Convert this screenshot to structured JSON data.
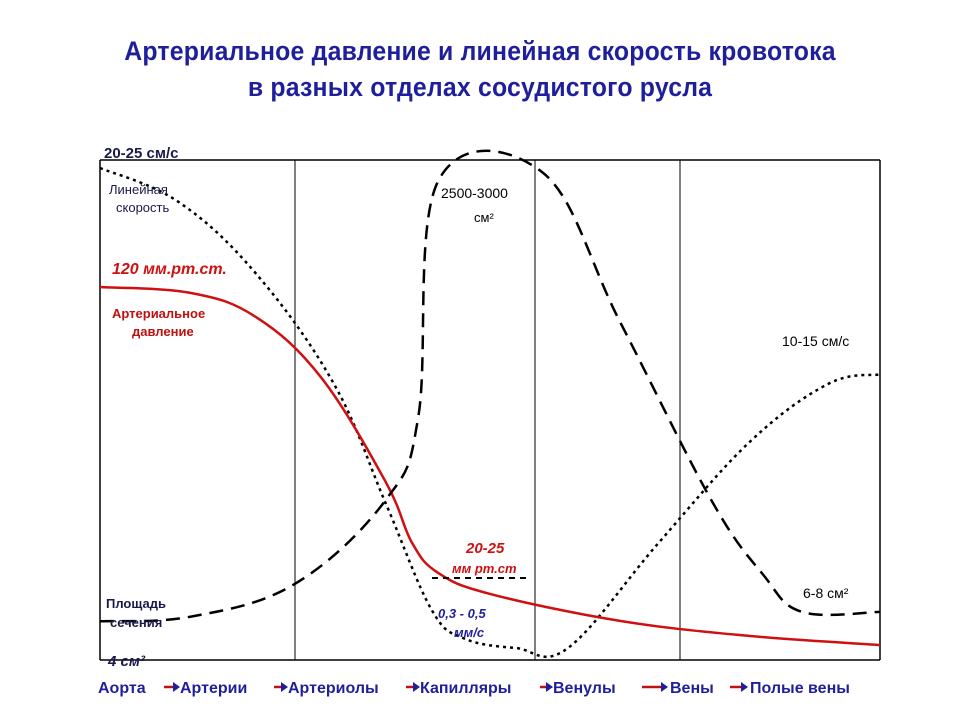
{
  "title_lines": [
    "Артериальное давление и линейная скорость кровотока",
    "в разных отделах сосудистого русла"
  ],
  "colors": {
    "title": "#1f1f9c",
    "pressure": "#d01010",
    "axis_text": "#1f1f9c",
    "curves": "#000000"
  },
  "chart_data": {
    "type": "line",
    "title": "Артериальное давление и линейная скорость кровотока в разных отделах сосудистого русла",
    "categories": [
      "Аорта",
      "Артерии",
      "Артериолы",
      "Капилляры",
      "Венулы",
      "Вены",
      "Полые вены"
    ],
    "grid": "vertical separators between vessel sections",
    "series": [
      {
        "name": "Линейная скорость",
        "style": "dotted",
        "color": "#000000",
        "start_label": "20-25 см/с",
        "end_label": "10-15 см/с",
        "points": [
          [
            0.0,
            1.0
          ],
          [
            0.6,
            0.93
          ],
          [
            1.2,
            0.78
          ],
          [
            1.8,
            0.55
          ],
          [
            2.2,
            0.3
          ],
          [
            2.55,
            0.08
          ],
          [
            2.8,
            0.02
          ],
          [
            3.2,
            0.0
          ],
          [
            3.6,
            0.0
          ],
          [
            4.3,
            0.22
          ],
          [
            5.0,
            0.43
          ],
          [
            5.6,
            0.55
          ],
          [
            6.0,
            0.57
          ]
        ]
      },
      {
        "name": "Артериальное давление",
        "style": "solid",
        "color": "#d01010",
        "start_label": "120 мм.рт.ст.",
        "mid_label_lines": [
          "20-25",
          "мм рт.ст"
        ],
        "points": [
          [
            0.0,
            120
          ],
          [
            0.7,
            118
          ],
          [
            1.2,
            110
          ],
          [
            1.7,
            90
          ],
          [
            2.2,
            55
          ],
          [
            2.4,
            35
          ],
          [
            2.6,
            25
          ],
          [
            3.0,
            18
          ],
          [
            4.0,
            9
          ],
          [
            5.0,
            4
          ],
          [
            6.0,
            1
          ]
        ]
      },
      {
        "name": "Площадь сечения",
        "style": "dashed",
        "color": "#000000",
        "start_label": "4 см²",
        "peak_label": [
          "2500-3000",
          "см²"
        ],
        "end_label": "6-8 см²",
        "points": [
          [
            0.0,
            0.04
          ],
          [
            0.7,
            0.05
          ],
          [
            1.5,
            0.12
          ],
          [
            2.2,
            0.3
          ],
          [
            2.45,
            0.48
          ],
          [
            2.6,
            0.98
          ],
          [
            3.4,
            1.0
          ],
          [
            4.0,
            0.68
          ],
          [
            4.7,
            0.3
          ],
          [
            5.1,
            0.14
          ],
          [
            5.4,
            0.06
          ],
          [
            6.0,
            0.06
          ]
        ]
      }
    ],
    "annotations": {
      "linear_speed_label_lines": [
        "Линейная",
        "скорость"
      ],
      "pressure_label_lines": [
        "Артериальное",
        "давление"
      ],
      "area_label_lines": [
        "Площадь",
        "сечения"
      ],
      "capillary_speed_lines": [
        "0,3 - 0,5",
        "мм/с"
      ]
    }
  }
}
